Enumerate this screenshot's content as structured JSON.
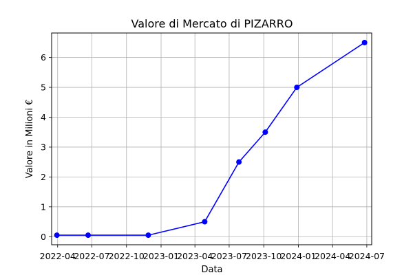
{
  "chart_data": {
    "type": "line",
    "title": "Valore di Mercato di PIZARRO",
    "xlabel": "Data",
    "ylabel": "Valore in Milioni €",
    "x_ticks": [
      "2022-04",
      "2022-07",
      "2022-10",
      "2023-01",
      "2023-04",
      "2023-07",
      "2023-10",
      "2024-01",
      "2024-04",
      "2024-07"
    ],
    "y_ticks": [
      0,
      1,
      2,
      3,
      4,
      5,
      6
    ],
    "xlim": [
      "2022-03-16",
      "2024-07-14"
    ],
    "ylim": [
      -0.27,
      6.82
    ],
    "grid": true,
    "series": [
      {
        "color": "#0000ff",
        "marker": "circle",
        "points": [
          {
            "x": "2022-03-30",
            "y": 0.05
          },
          {
            "x": "2022-06-21",
            "y": 0.05
          },
          {
            "x": "2022-11-28",
            "y": 0.05
          },
          {
            "x": "2023-04-27",
            "y": 0.5
          },
          {
            "x": "2023-07-27",
            "y": 2.5
          },
          {
            "x": "2023-10-05",
            "y": 3.5
          },
          {
            "x": "2023-12-28",
            "y": 5.0
          },
          {
            "x": "2024-06-25",
            "y": 6.5
          }
        ]
      }
    ]
  }
}
